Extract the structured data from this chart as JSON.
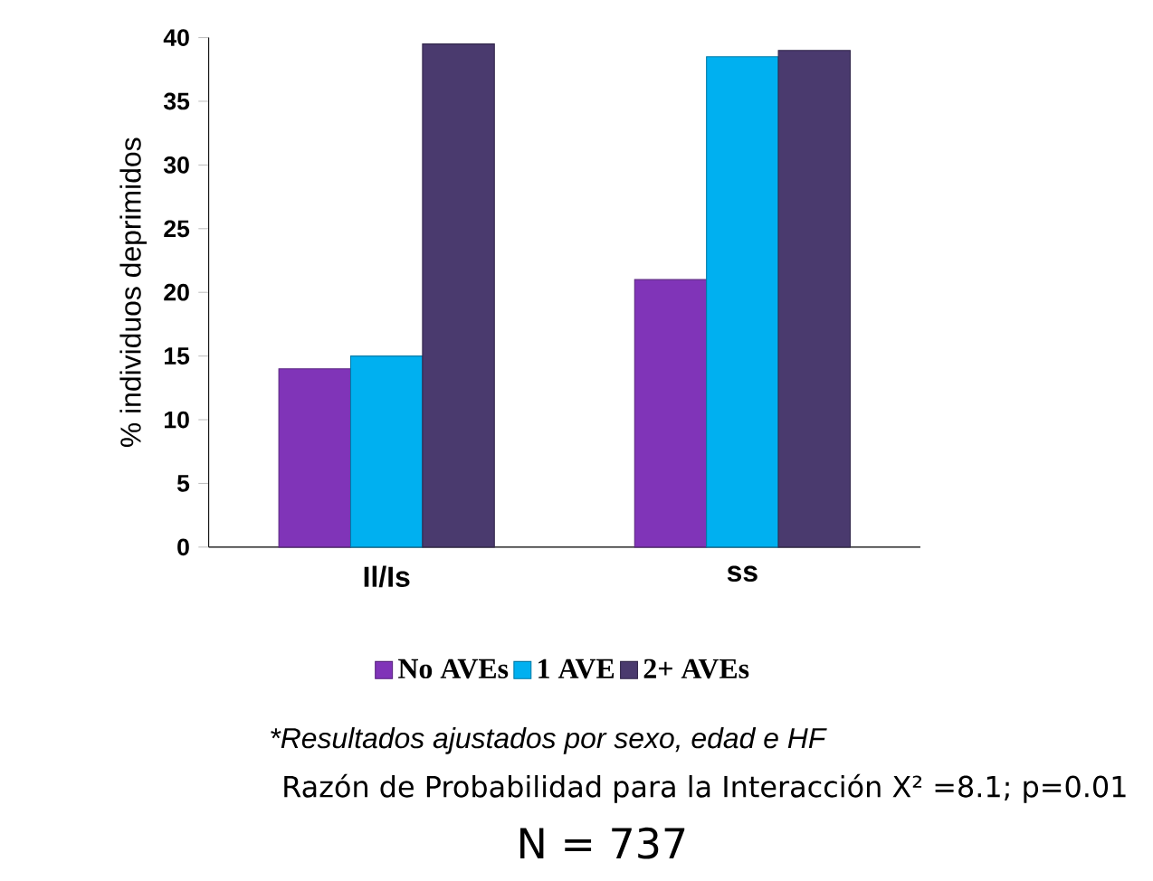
{
  "chart_data": {
    "type": "bar",
    "ylabel": "% individuos deprimidos",
    "categories": [
      "Il/Is",
      "ss"
    ],
    "series": [
      {
        "name": "No AVEs",
        "color": "#8034b8",
        "values": [
          14,
          21
        ]
      },
      {
        "name": "1 AVE",
        "color": "#00b0f0",
        "values": [
          15,
          38.5
        ]
      },
      {
        "name": "2+ AVEs",
        "color": "#4a3a6e",
        "values": [
          39.5,
          39
        ]
      }
    ],
    "ylim": [
      0,
      40
    ],
    "yticks": [
      0,
      5,
      10,
      15,
      20,
      25,
      30,
      35,
      40
    ],
    "grid": false,
    "legend": "bottom",
    "annotations": [
      "*Resultados ajustados por sexo, edad e HF",
      "Razón de Probabilidad para la Interacción X² =8.1; p=0.01",
      "N = 737"
    ]
  }
}
